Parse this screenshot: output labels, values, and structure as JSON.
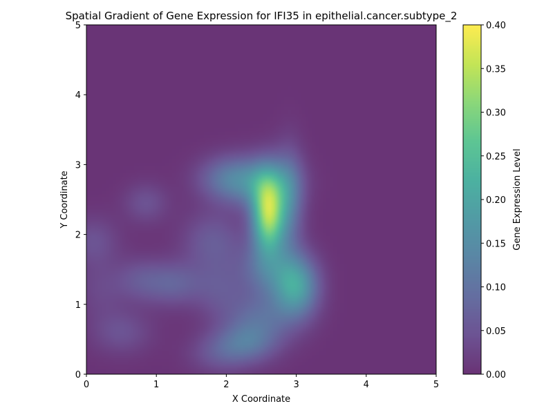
{
  "chart_data": {
    "type": "heatmap",
    "title": "Spatial Gradient of Gene Expression for IFI35 in epithelial.cancer.subtype_2",
    "xlabel": "X Coordinate",
    "ylabel": "Y Coordinate",
    "xlim": [
      0,
      5
    ],
    "ylim": [
      0,
      5
    ],
    "x_ticks": [
      "0",
      "1",
      "2",
      "3",
      "4",
      "5"
    ],
    "y_ticks": [
      "0",
      "1",
      "2",
      "3",
      "4",
      "5"
    ],
    "colorbar": {
      "label": "Gene Expression Level",
      "range": [
        0.0,
        0.4
      ],
      "ticks": [
        "0.00",
        "0.05",
        "0.10",
        "0.15",
        "0.20",
        "0.25",
        "0.30",
        "0.35",
        "0.40"
      ],
      "colormap": "viridis",
      "alpha": 0.8
    },
    "grid": false,
    "blobs": [
      {
        "x": 2.6,
        "y": 2.3,
        "sx": 0.16,
        "sy": 0.38,
        "value": 0.33
      },
      {
        "x": 2.45,
        "y": 2.75,
        "sx": 0.35,
        "sy": 0.25,
        "value": 0.12
      },
      {
        "x": 2.0,
        "y": 2.8,
        "sx": 0.3,
        "sy": 0.22,
        "value": 0.08
      },
      {
        "x": 2.9,
        "y": 2.5,
        "sx": 0.15,
        "sy": 0.5,
        "value": 0.1
      },
      {
        "x": 3.0,
        "y": 1.25,
        "sx": 0.22,
        "sy": 0.3,
        "value": 0.18
      },
      {
        "x": 2.6,
        "y": 1.5,
        "sx": 0.3,
        "sy": 0.3,
        "value": 0.1
      },
      {
        "x": 2.5,
        "y": 0.8,
        "sx": 0.35,
        "sy": 0.25,
        "value": 0.08
      },
      {
        "x": 2.3,
        "y": 0.45,
        "sx": 0.3,
        "sy": 0.2,
        "value": 0.09
      },
      {
        "x": 1.9,
        "y": 0.3,
        "sx": 0.3,
        "sy": 0.2,
        "value": 0.05
      },
      {
        "x": 1.25,
        "y": 1.3,
        "sx": 0.3,
        "sy": 0.22,
        "value": 0.07
      },
      {
        "x": 0.75,
        "y": 1.35,
        "sx": 0.25,
        "sy": 0.22,
        "value": 0.045
      },
      {
        "x": 0.5,
        "y": 0.6,
        "sx": 0.3,
        "sy": 0.22,
        "value": 0.045
      },
      {
        "x": 0.1,
        "y": 1.9,
        "sx": 0.25,
        "sy": 0.25,
        "value": 0.045
      },
      {
        "x": 0.85,
        "y": 2.45,
        "sx": 0.22,
        "sy": 0.2,
        "value": 0.045
      },
      {
        "x": 1.8,
        "y": 1.9,
        "sx": 0.3,
        "sy": 0.3,
        "value": 0.06
      },
      {
        "x": 1.9,
        "y": 1.2,
        "sx": 0.25,
        "sy": 0.3,
        "value": 0.045
      },
      {
        "x": 0.2,
        "y": 1.2,
        "sx": 0.25,
        "sy": 0.3,
        "value": 0.03
      }
    ]
  }
}
